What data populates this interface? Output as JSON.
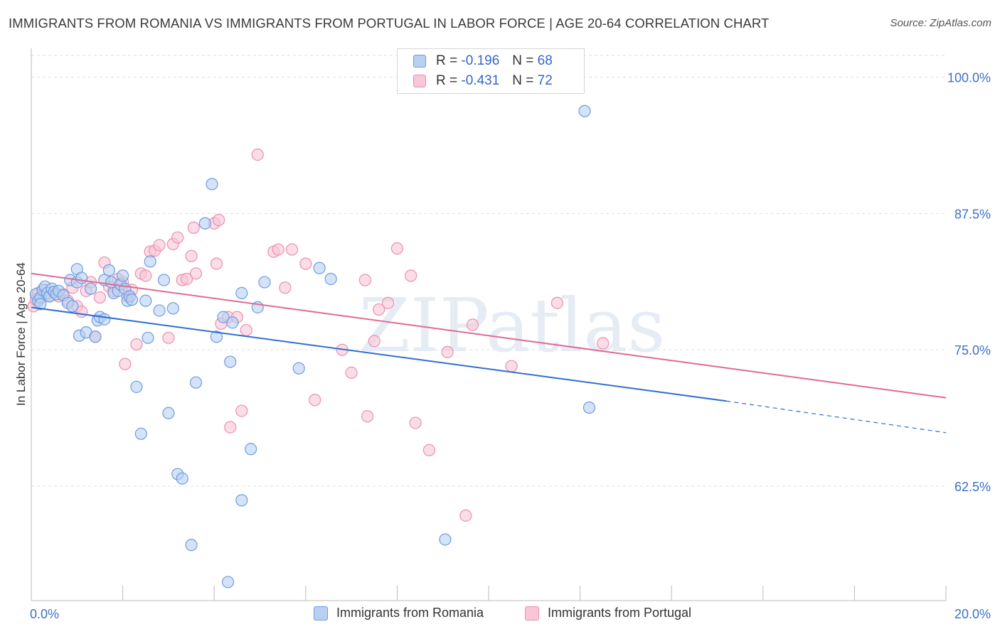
{
  "title": "IMMIGRANTS FROM ROMANIA VS IMMIGRANTS FROM PORTUGAL IN LABOR FORCE | AGE 20-64 CORRELATION CHART",
  "source": "Source: ZipAtlas.com",
  "watermark": "ZIPatlas",
  "legend_stats": [
    {
      "r_label": "R =",
      "r_value": "-0.196",
      "n_label": "N =",
      "n_value": "68"
    },
    {
      "r_label": "R =",
      "r_value": "-0.431",
      "n_label": "N =",
      "n_value": "72"
    }
  ],
  "colors": {
    "romania_fill": "#b8d0f2",
    "romania_stroke": "#6f9be0",
    "romania_line": "#2f6fd0",
    "portugal_fill": "#f8c6d7",
    "portugal_stroke": "#eb8fae",
    "portugal_line": "#e06a93",
    "axis_label": "#3a70c8",
    "grid": "#dddddd"
  },
  "chart_data": {
    "type": "scatter",
    "title": "IMMIGRANTS FROM ROMANIA VS IMMIGRANTS FROM PORTUGAL IN LABOR FORCE | AGE 20-64 CORRELATION CHART",
    "xlabel": "",
    "ylabel": "In Labor Force | Age 20-64",
    "xlim": [
      0,
      20
    ],
    "ylim": [
      52,
      102
    ],
    "x_tick_labels": [
      "0.0%",
      "20.0%"
    ],
    "y_ticks": [
      62.5,
      75.0,
      87.5,
      100.0
    ],
    "y_tick_labels": [
      "62.5%",
      "75.0%",
      "87.5%",
      "100.0%"
    ],
    "grid": true,
    "legend_placement": "top-center",
    "series": [
      {
        "name": "Immigrants from Romania",
        "trend": {
          "x0": 0,
          "y0": 78.9,
          "x1": 15.2,
          "y1": 70.3,
          "dash_to_x": 20,
          "dash_to_y": 67.4
        },
        "points": [
          [
            0.1,
            80.1
          ],
          [
            0.15,
            79.5
          ],
          [
            0.2,
            79.8
          ],
          [
            0.25,
            80.5
          ],
          [
            0.3,
            80.8
          ],
          [
            0.35,
            80.2
          ],
          [
            0.4,
            79.9
          ],
          [
            0.45,
            80.6
          ],
          [
            0.5,
            80.3
          ],
          [
            0.55,
            80.1
          ],
          [
            0.6,
            80.4
          ],
          [
            0.7,
            80.0
          ],
          [
            0.8,
            79.3
          ],
          [
            0.85,
            81.4
          ],
          [
            0.9,
            79.0
          ],
          [
            1.0,
            81.2
          ],
          [
            1.0,
            82.4
          ],
          [
            1.05,
            76.3
          ],
          [
            1.1,
            81.6
          ],
          [
            1.2,
            76.6
          ],
          [
            1.3,
            80.6
          ],
          [
            1.4,
            76.2
          ],
          [
            1.45,
            77.7
          ],
          [
            1.5,
            78.0
          ],
          [
            1.6,
            81.4
          ],
          [
            1.6,
            77.8
          ],
          [
            1.7,
            82.3
          ],
          [
            1.75,
            81.2
          ],
          [
            1.8,
            80.2
          ],
          [
            1.9,
            80.4
          ],
          [
            1.95,
            81.0
          ],
          [
            2.0,
            81.8
          ],
          [
            2.05,
            80.6
          ],
          [
            2.1,
            79.5
          ],
          [
            2.15,
            79.9
          ],
          [
            2.2,
            79.6
          ],
          [
            2.3,
            71.6
          ],
          [
            2.4,
            67.3
          ],
          [
            2.5,
            79.5
          ],
          [
            2.55,
            76.1
          ],
          [
            2.6,
            83.1
          ],
          [
            2.8,
            78.6
          ],
          [
            2.9,
            81.4
          ],
          [
            3.0,
            69.2
          ],
          [
            3.1,
            78.8
          ],
          [
            3.2,
            63.6
          ],
          [
            3.3,
            63.2
          ],
          [
            3.5,
            57.1
          ],
          [
            3.6,
            72.0
          ],
          [
            3.8,
            86.6
          ],
          [
            3.95,
            90.2
          ],
          [
            4.05,
            76.2
          ],
          [
            4.2,
            78.0
          ],
          [
            4.3,
            53.7
          ],
          [
            4.35,
            73.9
          ],
          [
            4.4,
            77.5
          ],
          [
            4.6,
            80.2
          ],
          [
            4.6,
            61.2
          ],
          [
            4.8,
            65.9
          ],
          [
            4.95,
            78.9
          ],
          [
            5.1,
            81.2
          ],
          [
            5.85,
            73.3
          ],
          [
            6.3,
            82.5
          ],
          [
            6.55,
            81.5
          ],
          [
            9.05,
            57.6
          ],
          [
            12.1,
            96.9
          ],
          [
            12.2,
            69.7
          ],
          [
            0.2,
            79.2
          ]
        ]
      },
      {
        "name": "Immigrants from Portugal",
        "trend": {
          "x0": 0,
          "y0": 82.0,
          "x1": 20,
          "y1": 70.6
        },
        "points": [
          [
            0.05,
            79.0
          ],
          [
            0.1,
            79.6
          ],
          [
            0.15,
            80.2
          ],
          [
            0.2,
            79.8
          ],
          [
            0.3,
            80.5
          ],
          [
            0.4,
            80.0
          ],
          [
            0.5,
            80.3
          ],
          [
            0.6,
            79.9
          ],
          [
            0.7,
            80.1
          ],
          [
            0.8,
            79.5
          ],
          [
            0.9,
            80.7
          ],
          [
            1.0,
            79.0
          ],
          [
            1.1,
            78.5
          ],
          [
            1.2,
            80.4
          ],
          [
            1.3,
            81.2
          ],
          [
            1.4,
            76.2
          ],
          [
            1.5,
            79.8
          ],
          [
            1.6,
            83.0
          ],
          [
            1.7,
            80.8
          ],
          [
            1.8,
            80.4
          ],
          [
            1.9,
            81.5
          ],
          [
            2.0,
            81.2
          ],
          [
            2.05,
            73.7
          ],
          [
            2.1,
            79.9
          ],
          [
            2.2,
            80.5
          ],
          [
            2.3,
            75.5
          ],
          [
            2.4,
            82.0
          ],
          [
            2.5,
            81.8
          ],
          [
            2.6,
            84.0
          ],
          [
            2.7,
            84.1
          ],
          [
            2.8,
            84.6
          ],
          [
            3.0,
            76.1
          ],
          [
            3.1,
            84.7
          ],
          [
            3.2,
            85.3
          ],
          [
            3.3,
            81.4
          ],
          [
            3.4,
            81.5
          ],
          [
            3.5,
            83.6
          ],
          [
            3.55,
            86.2
          ],
          [
            3.6,
            82.0
          ],
          [
            4.0,
            86.6
          ],
          [
            4.05,
            82.9
          ],
          [
            4.1,
            86.9
          ],
          [
            4.15,
            77.4
          ],
          [
            4.3,
            78.0
          ],
          [
            4.35,
            67.9
          ],
          [
            4.5,
            78.0
          ],
          [
            4.6,
            69.4
          ],
          [
            4.7,
            76.8
          ],
          [
            4.95,
            92.9
          ],
          [
            5.3,
            84.0
          ],
          [
            5.4,
            84.2
          ],
          [
            5.55,
            80.7
          ],
          [
            5.7,
            84.2
          ],
          [
            6.0,
            82.9
          ],
          [
            6.2,
            70.4
          ],
          [
            6.8,
            75.0
          ],
          [
            7.0,
            72.9
          ],
          [
            7.3,
            81.4
          ],
          [
            7.35,
            68.9
          ],
          [
            7.5,
            75.8
          ],
          [
            7.6,
            78.7
          ],
          [
            7.8,
            79.3
          ],
          [
            8.0,
            84.3
          ],
          [
            8.3,
            81.8
          ],
          [
            8.4,
            68.3
          ],
          [
            8.7,
            65.8
          ],
          [
            9.1,
            74.8
          ],
          [
            9.5,
            59.8
          ],
          [
            9.65,
            77.3
          ],
          [
            10.5,
            73.5
          ],
          [
            11.5,
            79.3
          ],
          [
            12.5,
            75.6
          ]
        ]
      }
    ]
  }
}
